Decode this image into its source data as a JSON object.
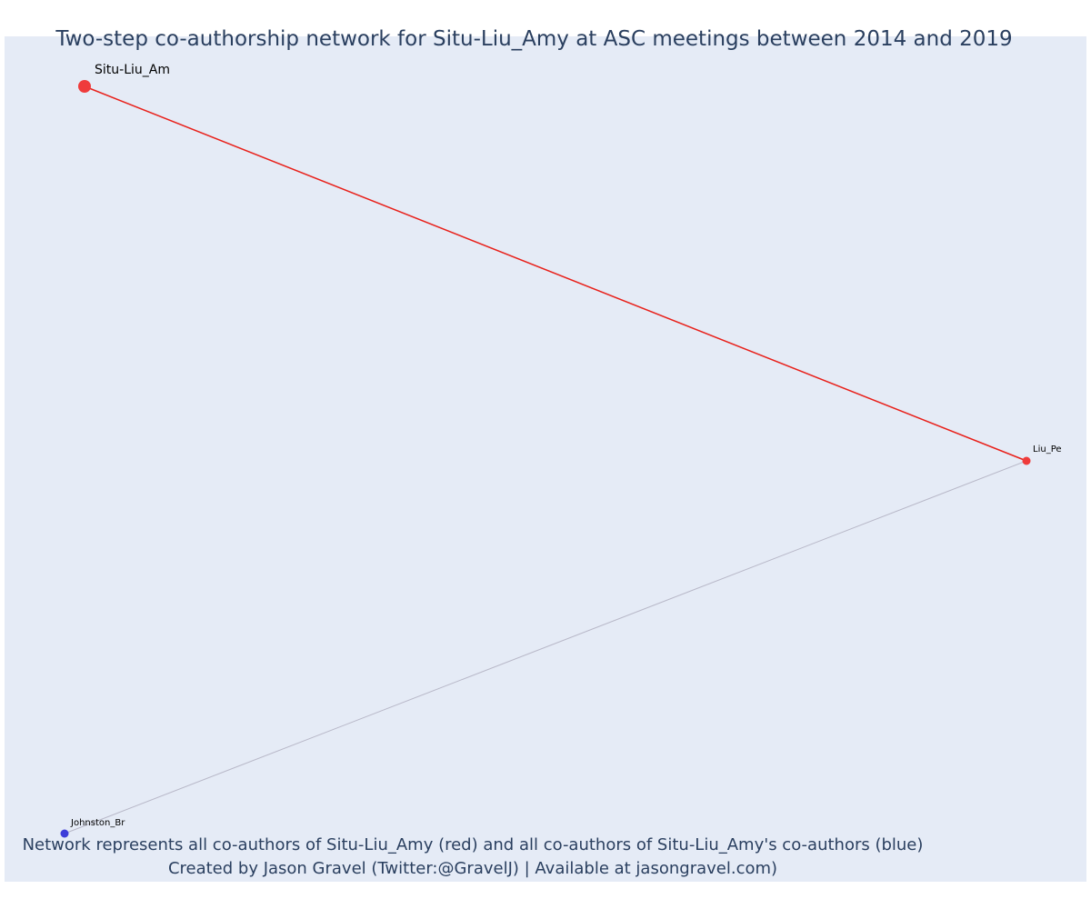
{
  "title": "Two-step co-authorship network for Situ-Liu_Amy at ASC meetings between 2014 and 2019",
  "footer": {
    "line1": "Network represents all co-authors of Situ-Liu_Amy (red) and all co-authors of Situ-Liu_Amy's co-authors (blue)",
    "line2": "Created by Jason Gravel (Twitter:@GravelJ) | Available at jasongravel.com)"
  },
  "colors": {
    "background": "#e5ebf6",
    "coauthor": "#ef3b3b",
    "second_step": "#3d3dd9",
    "primary_edge": "#e8201a",
    "secondary_edge": "#b8b8c8",
    "text": "#2a3f5f"
  },
  "network": {
    "nodes": [
      {
        "id": "situ",
        "label": "Situ-Liu_Am",
        "group": "focal"
      },
      {
        "id": "liu",
        "label": "Liu_Pe",
        "group": "coauthor"
      },
      {
        "id": "johnston",
        "label": "Johnston_Br",
        "group": "second_step"
      }
    ],
    "edges": [
      {
        "source": "situ",
        "target": "liu",
        "type": "primary"
      },
      {
        "source": "liu",
        "target": "johnston",
        "type": "secondary"
      }
    ]
  }
}
